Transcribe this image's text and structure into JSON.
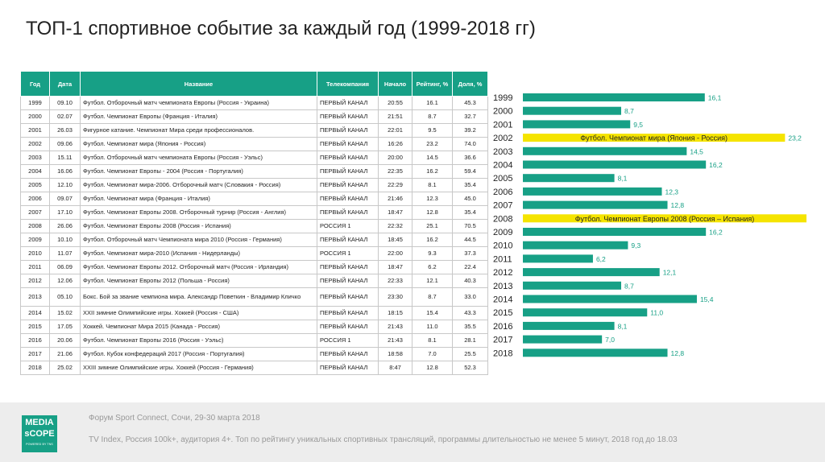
{
  "title": "ТОП-1 спортивное событие за каждый год (1999-2018 гг)",
  "table": {
    "headers": [
      "Год",
      "Дата",
      "Название",
      "Телекомпания",
      "Начало",
      "Рейтинг, %",
      "Доля, %"
    ],
    "rows": [
      [
        "1999",
        "09.10",
        "Футбол. Отборочный матч чемпионата Европы (Россия - Украина)",
        "ПЕРВЫЙ КАНАЛ",
        "20:55",
        "16.1",
        "45.3"
      ],
      [
        "2000",
        "02.07",
        "Футбол. Чемпионат Европы (Франция - Италия)",
        "ПЕРВЫЙ КАНАЛ",
        "21:51",
        "8.7",
        "32.7"
      ],
      [
        "2001",
        "26.03",
        "Фигурное катание. Чемпионат Мира среди профессионалов.",
        "ПЕРВЫЙ КАНАЛ",
        "22:01",
        "9.5",
        "39.2"
      ],
      [
        "2002",
        "09.06",
        "Футбол. Чемпионат мира (Япония - Россия)",
        "ПЕРВЫЙ КАНАЛ",
        "16:26",
        "23.2",
        "74.0"
      ],
      [
        "2003",
        "15.11",
        "Футбол. Отборочный матч чемпионата Европы (Россия - Уэльс)",
        "ПЕРВЫЙ КАНАЛ",
        "20:00",
        "14.5",
        "36.6"
      ],
      [
        "2004",
        "16.06",
        "Футбол. Чемпионат Европы - 2004 (Россия - Португалия)",
        "ПЕРВЫЙ КАНАЛ",
        "22:35",
        "16.2",
        "59.4"
      ],
      [
        "2005",
        "12.10",
        "Футбол. Чемпионат мира-2006. Отборочный матч (Словакия - Россия)",
        "ПЕРВЫЙ КАНАЛ",
        "22:29",
        "8.1",
        "35.4"
      ],
      [
        "2006",
        "09.07",
        "Футбол. Чемпионат мира (Франция - Италия)",
        "ПЕРВЫЙ КАНАЛ",
        "21:46",
        "12.3",
        "45.0"
      ],
      [
        "2007",
        "17.10",
        "Футбол. Чемпионат Европы 2008. Отборочный турнир (Россия - Англия)",
        "ПЕРВЫЙ КАНАЛ",
        "18:47",
        "12.8",
        "35.4"
      ],
      [
        "2008",
        "26.06",
        "Футбол. Чемпионат Европы 2008 (Россия - Испания)",
        "РОССИЯ 1",
        "22:32",
        "25.1",
        "70.5"
      ],
      [
        "2009",
        "10.10",
        "Футбол. Отборочный матч Чемпионата мира 2010 (Россия - Германия)",
        "ПЕРВЫЙ КАНАЛ",
        "18:45",
        "16.2",
        "44.5"
      ],
      [
        "2010",
        "11.07",
        "Футбол. Чемпионат мира-2010 (Испания - Нидерланды)",
        "РОССИЯ 1",
        "22:00",
        "9.3",
        "37.3"
      ],
      [
        "2011",
        "06.09",
        "Футбол. Чемпионат Европы 2012. Отборочный матч (Россия - Ирландия)",
        "ПЕРВЫЙ КАНАЛ",
        "18:47",
        "6.2",
        "22.4"
      ],
      [
        "2012",
        "12.06",
        "Футбол. Чемпионат Европы 2012 (Польша - Россия)",
        "ПЕРВЫЙ КАНАЛ",
        "22:33",
        "12.1",
        "40.3"
      ],
      [
        "2013",
        "05.10",
        "Бокс. Бой за звание чемпиона мира. Александр Поветкин - Владимир Кличко",
        "ПЕРВЫЙ КАНАЛ",
        "23:30",
        "8.7",
        "33.0"
      ],
      [
        "2014",
        "15.02",
        "XXII зимние Олимпийские игры. Хоккей (Россия - США)",
        "ПЕРВЫЙ КАНАЛ",
        "18:15",
        "15.4",
        "43.3"
      ],
      [
        "2015",
        "17.05",
        "Хоккей. Чемпионат Мира 2015 (Канада - Россия)",
        "ПЕРВЫЙ КАНАЛ",
        "21:43",
        "11.0",
        "35.5"
      ],
      [
        "2016",
        "20.06",
        "Футбол. Чемпионат Европы 2016 (Россия - Уэльс)",
        "РОССИЯ 1",
        "21:43",
        "8.1",
        "28.1"
      ],
      [
        "2017",
        "21.06",
        "Футбол. Кубок конфедераций 2017 (Россия - Португалия)",
        "ПЕРВЫЙ КАНАЛ",
        "18:58",
        "7.0",
        "25.5"
      ],
      [
        "2018",
        "25.02",
        "XXIII зимние Олимпийские игры. Хоккей (Россия - Германия)",
        "ПЕРВЫЙ КАНАЛ",
        "8:47",
        "12.8",
        "52.3"
      ]
    ]
  },
  "chart_data": {
    "type": "bar",
    "orientation": "horizontal",
    "categories": [
      "1999",
      "2000",
      "2001",
      "2002",
      "2003",
      "2004",
      "2005",
      "2006",
      "2007",
      "2008",
      "2009",
      "2010",
      "2011",
      "2012",
      "2013",
      "2014",
      "2015",
      "2016",
      "2017",
      "2018"
    ],
    "values": [
      16.1,
      8.7,
      9.5,
      23.2,
      14.5,
      16.2,
      8.1,
      12.3,
      12.8,
      25.1,
      16.2,
      9.3,
      6.2,
      12.1,
      8.7,
      15.4,
      11.0,
      8.1,
      7.0,
      12.8
    ],
    "value_labels": [
      "16,1",
      "8,7",
      "9,5",
      "23,2",
      "14,5",
      "16,2",
      "8,1",
      "12,3",
      "12,8",
      "",
      "16,2",
      "9,3",
      "6,2",
      "12,1",
      "8,7",
      "15,4",
      "11,0",
      "8,1",
      "7,0",
      "12,8"
    ],
    "highlights": [
      {
        "category": "2002",
        "label": "Футбол. Чемпионат мира (Япония - Россия)"
      },
      {
        "category": "2008",
        "label": "Футбол. Чемпионат Европы 2008 (Россия – Испания)"
      }
    ],
    "xlim": [
      0,
      25.1
    ],
    "colors": {
      "bar": "#17a086",
      "highlight": "#f5e400",
      "label": "#17a086",
      "highlight_text": "#222222"
    },
    "grid": false
  },
  "footer": {
    "event": "Форум Sport Connect, Сочи, 29-30 марта 2018",
    "note": "TV Index, Россия 100k+, аудитория 4+. Топ по рейтингу уникальных спортивных трансляций, программы длительностью не менее 5 минут, 2018 год до 18.03",
    "logo_line1": "MEDIA",
    "logo_line2": "sCOPE",
    "logo_line3": "POWERED BY TNS"
  }
}
